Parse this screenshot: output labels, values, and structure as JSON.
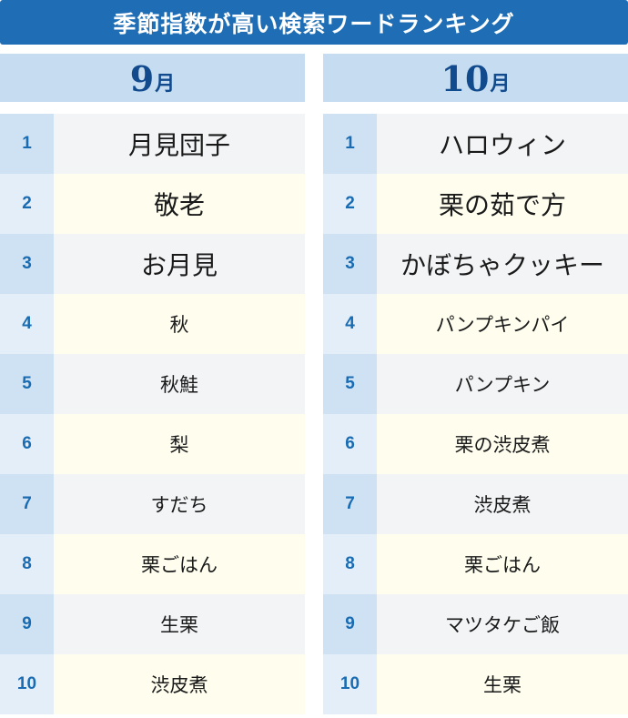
{
  "title": "季節指数が高い検索ワードランキング",
  "columns": [
    {
      "month_number": "9",
      "month_unit": "月",
      "items": [
        {
          "rank": "1",
          "word": "月見団子"
        },
        {
          "rank": "2",
          "word": "敬老"
        },
        {
          "rank": "3",
          "word": "お月見"
        },
        {
          "rank": "4",
          "word": "秋"
        },
        {
          "rank": "5",
          "word": "秋鮭"
        },
        {
          "rank": "6",
          "word": "梨"
        },
        {
          "rank": "7",
          "word": "すだち"
        },
        {
          "rank": "8",
          "word": "栗ごはん"
        },
        {
          "rank": "9",
          "word": "生栗"
        },
        {
          "rank": "10",
          "word": "渋皮煮"
        }
      ]
    },
    {
      "month_number": "10",
      "month_unit": "月",
      "items": [
        {
          "rank": "1",
          "word": "ハロウィン"
        },
        {
          "rank": "2",
          "word": "栗の茹で方"
        },
        {
          "rank": "3",
          "word": "かぼちゃクッキー"
        },
        {
          "rank": "4",
          "word": "パンプキンパイ"
        },
        {
          "rank": "5",
          "word": "パンプキン"
        },
        {
          "rank": "6",
          "word": "栗の渋皮煮"
        },
        {
          "rank": "7",
          "word": "渋皮煮"
        },
        {
          "rank": "8",
          "word": "栗ごはん"
        },
        {
          "rank": "9",
          "word": "マツタケご飯"
        },
        {
          "rank": "10",
          "word": "生栗"
        }
      ]
    }
  ],
  "colors": {
    "title_bg": "#1f6eb5",
    "header_bg": "#c5dcf1",
    "month_text": "#114a8d",
    "rank_text": "#1a6cb2"
  }
}
